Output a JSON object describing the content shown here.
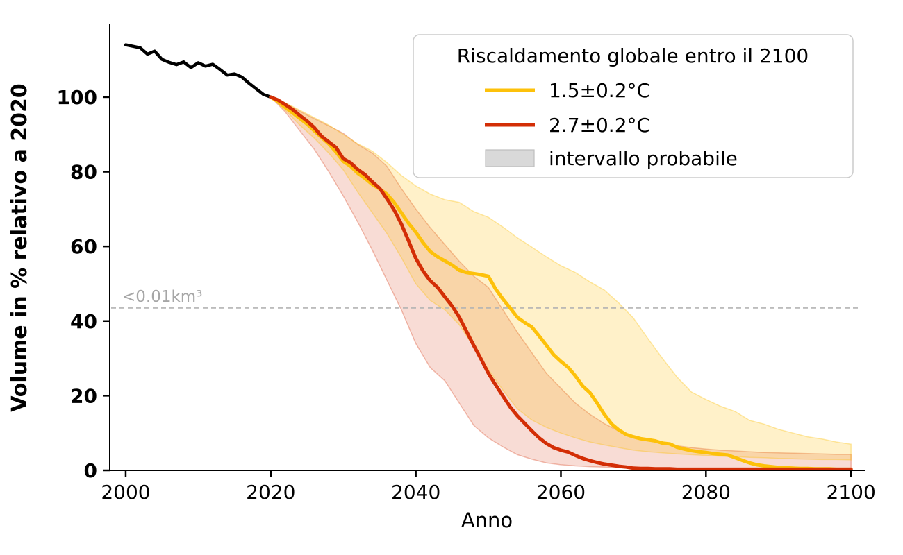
{
  "chart_data": {
    "type": "line",
    "title": "",
    "xlabel": "Anno",
    "ylabel": "Volume in % relativo a 2020",
    "x_ticks": [
      2000,
      2020,
      2040,
      2060,
      2080,
      2100
    ],
    "y_ticks": [
      0,
      20,
      40,
      60,
      80,
      100
    ],
    "xlim": [
      1997.8,
      2101.9
    ],
    "ylim": [
      0,
      119.5
    ],
    "grid": false,
    "threshold": {
      "value": 43.5,
      "label": "<0.01km³",
      "line_color": "#b3b3b3",
      "label_color": "#a6a6a6"
    },
    "series": [
      {
        "name": "storico",
        "color": "#000000",
        "x_start": 2000,
        "x_step": 1,
        "values": [
          114.0,
          113.6,
          113.2,
          111.5,
          112.3,
          110.1,
          109.3,
          108.7,
          109.4,
          107.9,
          109.2,
          108.3,
          108.8,
          107.4,
          105.9,
          106.2,
          105.4,
          103.7,
          102.2,
          100.7,
          100.0
        ]
      },
      {
        "name": "1.5±0.2°C",
        "color": "#fdc10a",
        "x_start": 2020,
        "x_step": 1,
        "values": [
          100,
          98.8,
          97.3,
          95.8,
          94.3,
          92.8,
          91.0,
          89.2,
          87.5,
          85.3,
          82.8,
          81.5,
          79.6,
          78.2,
          76.6,
          75.4,
          74.0,
          71.8,
          69.0,
          66.2,
          63.8,
          61.0,
          58.6,
          57.2,
          56.1,
          55.0,
          53.6,
          53.0,
          52.7,
          52.4,
          52.0,
          48.6,
          45.9,
          43.5,
          41.0,
          39.6,
          38.4,
          36.0,
          33.5,
          31.0,
          29.2,
          27.6,
          25.3,
          22.6,
          20.8,
          18.0,
          15.0,
          12.4,
          10.8,
          9.6,
          9.0,
          8.5,
          8.2,
          7.9,
          7.3,
          7.1,
          6.2,
          5.7,
          5.3,
          5.0,
          4.8,
          4.5,
          4.3,
          4.1,
          3.4,
          2.7,
          2.0,
          1.5,
          1.2,
          1.0,
          0.8,
          0.7,
          0.6,
          0.5,
          0.5,
          0.4,
          0.4,
          0.4,
          0.3,
          0.3,
          0.3
        ]
      },
      {
        "name": "2.7±0.2°C",
        "color": "#d32e06",
        "x_start": 2020,
        "x_step": 1,
        "values": [
          100,
          99.2,
          98.0,
          96.7,
          95.1,
          93.6,
          91.8,
          89.5,
          88.0,
          86.5,
          83.5,
          82.4,
          80.6,
          79.2,
          77.3,
          75.6,
          72.8,
          69.8,
          66.0,
          61.5,
          56.8,
          53.4,
          50.8,
          49.0,
          46.5,
          44.0,
          41.0,
          37.2,
          33.4,
          29.8,
          26.0,
          22.9,
          19.9,
          17.0,
          14.6,
          12.6,
          10.6,
          8.7,
          7.2,
          6.1,
          5.4,
          4.9,
          4.0,
          3.2,
          2.6,
          2.1,
          1.7,
          1.4,
          1.1,
          0.9,
          0.6,
          0.5,
          0.5,
          0.4,
          0.4,
          0.4,
          0.3,
          0.3,
          0.3,
          0.3,
          0.3,
          0.3,
          0.3,
          0.3,
          0.3,
          0.3,
          0.3,
          0.3,
          0.3,
          0.3,
          0.3,
          0.3,
          0.3,
          0.3,
          0.3,
          0.3,
          0.3,
          0.3,
          0.3,
          0.3,
          0.3
        ]
      }
    ],
    "bands": [
      {
        "name": "intervallo probabile 1.5°C",
        "color": "#fdc10a",
        "fill_opacity": 0.22,
        "edge_opacity": 0.35,
        "x_start": 2020,
        "x_step": 2,
        "upper": [
          100,
          98.5,
          96.5,
          94.5,
          92.5,
          90.0,
          87.5,
          85.5,
          82.5,
          79.0,
          76.2,
          74.0,
          72.5,
          71.8,
          69.3,
          67.8,
          65.2,
          62.3,
          59.8,
          57.2,
          54.8,
          53.0,
          50.5,
          48.3,
          44.8,
          40.8,
          35.3,
          30.0,
          25.0,
          21.0,
          19.0,
          17.2,
          15.8,
          13.4,
          12.4,
          11.0,
          10.0,
          9.0,
          8.4,
          7.6,
          7.0
        ],
        "lower": [
          100,
          96.5,
          92.5,
          89.0,
          85.0,
          80.5,
          74.5,
          69.0,
          63.5,
          57.0,
          50.0,
          45.5,
          43.0,
          39.0,
          33.0,
          27.0,
          21.5,
          16.5,
          13.5,
          11.5,
          10.0,
          8.7,
          7.6,
          6.8,
          6.1,
          5.4,
          5.0,
          4.7,
          4.4,
          4.2,
          4.0,
          3.8,
          3.7,
          3.5,
          3.4,
          3.2,
          3.1,
          3.0,
          2.9,
          2.9,
          2.8
        ]
      },
      {
        "name": "intervallo probabile 2.7°C",
        "color": "#d32e06",
        "fill_opacity": 0.17,
        "edge_opacity": 0.3,
        "x_start": 2020,
        "x_step": 2,
        "upper": [
          100,
          98.3,
          96.2,
          94.2,
          92.3,
          90.3,
          87.3,
          85.0,
          81.5,
          75.5,
          70.0,
          65.0,
          60.5,
          56.0,
          52.0,
          49.0,
          43.0,
          37.0,
          31.5,
          26.0,
          22.0,
          18.0,
          15.0,
          12.5,
          10.5,
          9.0,
          8.0,
          7.2,
          6.6,
          6.1,
          5.7,
          5.4,
          5.2,
          5.0,
          4.8,
          4.7,
          4.6,
          4.5,
          4.4,
          4.3,
          4.3
        ],
        "lower": [
          100,
          96.0,
          91.0,
          86.0,
          80.0,
          73.5,
          66.5,
          59.0,
          51.0,
          43.0,
          34.0,
          27.5,
          24.0,
          18.0,
          12.0,
          8.7,
          6.3,
          4.2,
          3.0,
          2.0,
          1.5,
          1.2,
          1.0,
          0.9,
          0.7,
          0.5,
          0.45,
          0.4,
          0.38,
          0.35,
          0.3,
          0.28,
          0.26,
          0.24,
          0.22,
          0.2,
          0.18,
          0.16,
          0.15,
          0.12,
          0.1
        ]
      }
    ],
    "legend": {
      "title": "Riscaldamento globale entro il 2100",
      "items": [
        {
          "label": "1.5±0.2°C",
          "swatch": "line",
          "color": "#fdc10a"
        },
        {
          "label": "2.7±0.2°C",
          "swatch": "line",
          "color": "#d32e06"
        },
        {
          "label": "intervallo probabile",
          "swatch": "patch",
          "color": "#d9d9d9",
          "edge_color": "#bdbdbd"
        }
      ]
    }
  }
}
